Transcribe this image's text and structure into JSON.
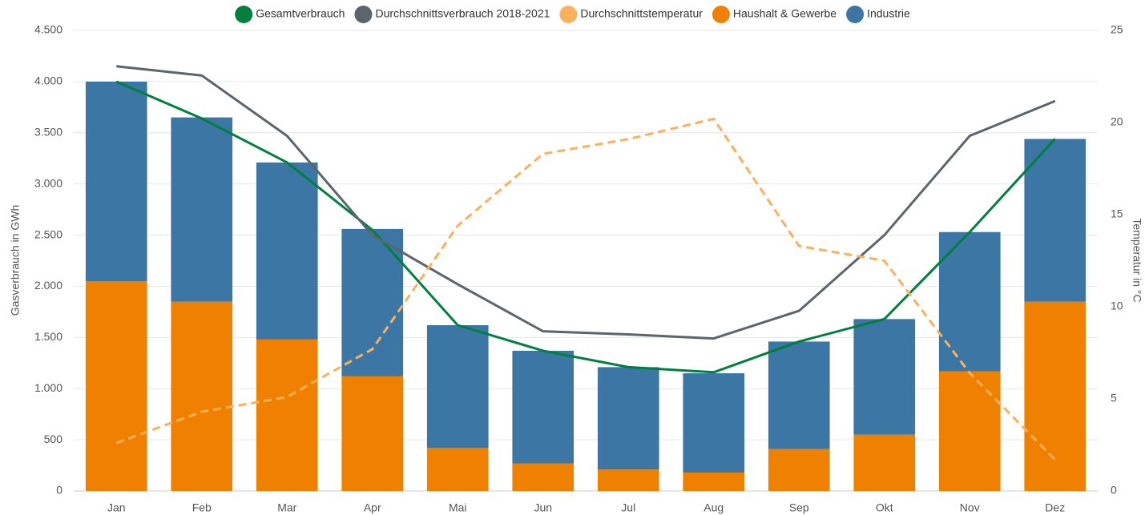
{
  "chart_data": {
    "type": "bar",
    "stacked": true,
    "categories": [
      "Jan",
      "Feb",
      "Mar",
      "Apr",
      "Mai",
      "Jun",
      "Jul",
      "Aug",
      "Sep",
      "Okt",
      "Nov",
      "Dez"
    ],
    "series": [
      {
        "name": "Gesamtverbrauch",
        "type": "line",
        "color": "#007f3f",
        "values": [
          4000,
          3640,
          3210,
          2550,
          1620,
          1370,
          1210,
          1160,
          1460,
          1680,
          2530,
          3440
        ]
      },
      {
        "name": "Durchschnittsverbrauch 2018-2021",
        "type": "line",
        "color": "#5a656e",
        "values": [
          4150,
          4060,
          3470,
          2500,
          2020,
          1560,
          1530,
          1490,
          1760,
          2500,
          3470,
          3810
        ]
      },
      {
        "name": "Durchschnittstemperatur",
        "type": "line",
        "axis": "y2",
        "dashed": true,
        "color": "#fbb05c",
        "values": [
          2.6,
          4.3,
          5.1,
          7.7,
          14.4,
          18.3,
          19.1,
          20.2,
          13.3,
          12.5,
          6.4,
          1.7
        ]
      },
      {
        "name": "Haushalt & Gewerbe",
        "type": "bar",
        "color": "#ef8000",
        "values": [
          2050,
          1850,
          1480,
          1120,
          420,
          270,
          210,
          180,
          410,
          550,
          1170,
          1850
        ]
      },
      {
        "name": "Industrie",
        "type": "bar",
        "color": "#3b76a5",
        "values": [
          1950,
          1800,
          1730,
          1440,
          1200,
          1100,
          1000,
          970,
          1050,
          1130,
          1360,
          1590
        ]
      }
    ],
    "y_label": "Gasverbrauch in GWh",
    "y2_label": "Temperatur in °C",
    "ylim": [
      0,
      4500
    ],
    "yticks": [
      0,
      500,
      {
        "value": 1000,
        "label": "1.000"
      },
      {
        "value": 1500,
        "label": "1.500"
      },
      {
        "value": 2000,
        "label": "2.000"
      },
      {
        "value": 2500,
        "label": "2.500"
      },
      {
        "value": 3000,
        "label": "3.000"
      },
      {
        "value": 3500,
        "label": "3.500"
      },
      {
        "value": 4000,
        "label": "4.000"
      },
      {
        "value": 4500,
        "label": "4.500"
      }
    ],
    "y2lim": [
      0,
      25
    ],
    "y2ticks": [
      0,
      5,
      10,
      15,
      20,
      25
    ],
    "grid": true,
    "legend": "top"
  }
}
